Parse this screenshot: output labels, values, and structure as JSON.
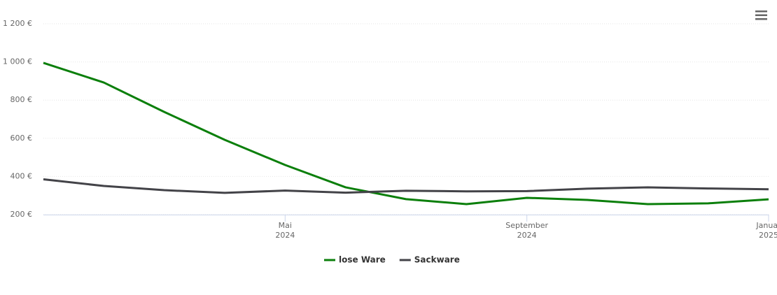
{
  "chart_data": {
    "type": "line",
    "x": [
      "2024-01",
      "2024-02",
      "2024-03",
      "2024-04",
      "2024-05",
      "2024-06",
      "2024-07",
      "2024-08",
      "2024-09",
      "2024-10",
      "2024-11",
      "2024-12",
      "2025-01"
    ],
    "series": [
      {
        "name": "lose Ware",
        "color": "#0b7f0b",
        "values": [
          995,
          892,
          738,
          592,
          460,
          343,
          281,
          255,
          288,
          277,
          255,
          259,
          280
        ]
      },
      {
        "name": "Sackware",
        "color": "#434348",
        "values": [
          385,
          350,
          328,
          314,
          326,
          315,
          325,
          322,
          323,
          336,
          343,
          337,
          333
        ]
      }
    ],
    "xlim": [
      "2024-01",
      "2025-01"
    ],
    "xticks": [
      {
        "value": "2024-05",
        "label": "Mai 2024"
      },
      {
        "value": "2024-09",
        "label": "September 2024"
      },
      {
        "value": "2025-01",
        "label": "Januar 2025"
      }
    ],
    "ylim": [
      200,
      1200
    ],
    "yticks": [
      {
        "value": 200,
        "label": "200 €"
      },
      {
        "value": 400,
        "label": "400 €"
      },
      {
        "value": 600,
        "label": "600 €"
      },
      {
        "value": 800,
        "label": "800 €"
      },
      {
        "value": 1000,
        "label": "1 000 €"
      },
      {
        "value": 1200,
        "label": "1 200 €"
      }
    ],
    "grid": true
  }
}
